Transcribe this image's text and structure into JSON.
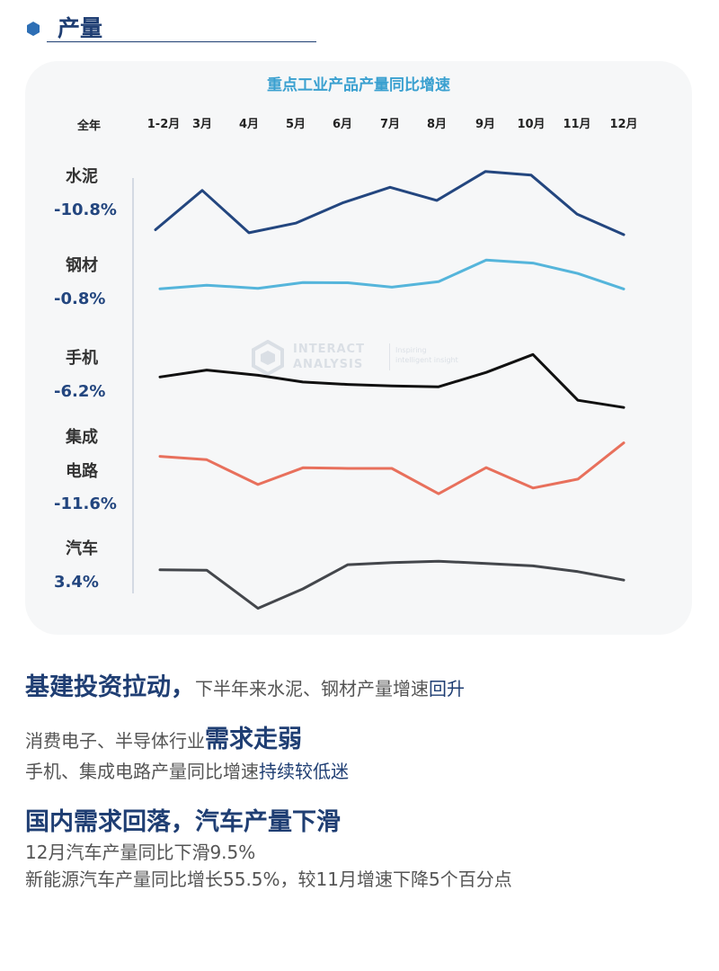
{
  "section": {
    "title": "产量"
  },
  "chart_data": {
    "type": "line",
    "title": "重点工业产品产量同比增速",
    "categories": [
      "1-2月",
      "3月",
      "4月",
      "5月",
      "6月",
      "7月",
      "8月",
      "9月",
      "10月",
      "11月",
      "12月"
    ],
    "annual_header": "全年",
    "series": [
      {
        "name": "水泥",
        "annual": "-10.8%",
        "color": "#23467f",
        "values": [
          -15.0,
          5.8,
          -16.6,
          -11.5,
          -0.8,
          7.5,
          0.5,
          15.8,
          13.9,
          -6.7,
          -17.6
        ]
      },
      {
        "name": "钢材",
        "annual": "-0.8%",
        "color": "#55b5db",
        "values": [
          -3.5,
          -0.8,
          -3.1,
          1.1,
          1.0,
          -2.3,
          1.8,
          17.9,
          15.6,
          7.9,
          -3.6
        ]
      },
      {
        "name": "手机",
        "annual": "-6.2%",
        "color": "#111111",
        "values": [
          -5.8,
          -1.0,
          -4.6,
          -9.3,
          -11.0,
          -12.0,
          -12.6,
          -2.6,
          9.8,
          -22.0,
          -27.0
        ]
      },
      {
        "name": "集成电路",
        "annual": "-11.6%",
        "color": "#e8705c",
        "values": [
          -2.1,
          -4.3,
          -20.5,
          -9.6,
          -10.0,
          -10.0,
          -26.6,
          -9.5,
          -22.8,
          -17.0,
          6.7
        ]
      },
      {
        "name": "汽车",
        "annual": "3.4%",
        "color": "#44474c",
        "values": [
          -2.4,
          -2.6,
          -29.1,
          -15.6,
          1.2,
          2.6,
          3.6,
          2.0,
          0.4,
          -3.6,
          -9.5
        ]
      }
    ],
    "watermark": {
      "name_line1": "INTERACT",
      "name_line2": "ANALYSIS",
      "tag_line1": "Inspiring",
      "tag_line2": "intelligent insight"
    }
  },
  "text": {
    "p1": {
      "bold": "基建投资拉动，",
      "normal": "下半年来水泥、钢材产量增速",
      "blue": "回升"
    },
    "p2": {
      "normal": "消费电子、半导体行业",
      "bold": "需求走弱"
    },
    "p3": {
      "normal": "手机、集成电路产量同比增速",
      "blue": "持续较低迷"
    },
    "p4": {
      "bold": "国内需求回落，汽车产量下滑"
    },
    "p5": "12月汽车产量同比下滑9.5%",
    "p6": "新能源汽车产量同比增长55.5%，较11月增速下降5个百分点"
  }
}
